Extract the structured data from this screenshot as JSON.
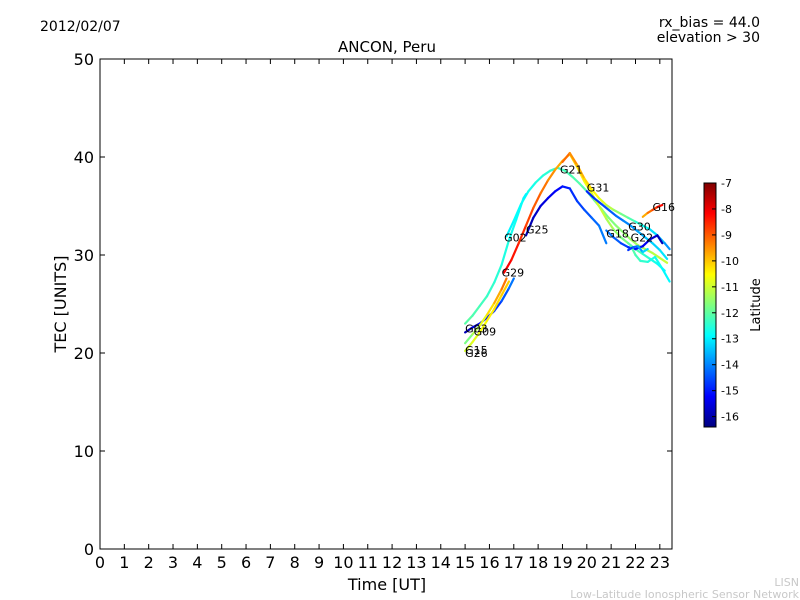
{
  "header": {
    "date": "2012/02/07",
    "rx_bias": "rx_bias = 44.0",
    "elevation": "elevation > 30"
  },
  "footer": {
    "credit_short": "LISN",
    "credit_long": "Low-Latitude Ionospheric Sensor Network"
  },
  "chart_data": {
    "type": "line",
    "title": "ANCON, Peru",
    "xlabel": "Time [UT]",
    "ylabel": "TEC [UNITS]",
    "xlim": [
      0,
      23.5
    ],
    "ylim": [
      0,
      50
    ],
    "xticks": [
      "0",
      "1",
      "2",
      "3",
      "4",
      "5",
      "6",
      "7",
      "8",
      "9",
      "10",
      "11",
      "12",
      "13",
      "14",
      "15",
      "16",
      "17",
      "18",
      "19",
      "20",
      "21",
      "22",
      "23"
    ],
    "yticks": [
      "0",
      "10",
      "20",
      "30",
      "40",
      "50"
    ],
    "grid": false,
    "colorbar": {
      "label": "Latitude",
      "range": [
        -16.4,
        -7
      ],
      "ticks": [
        "-7",
        "-8",
        "-9",
        "-10",
        "-11",
        "-12",
        "-13",
        "-14",
        "-15",
        "-16"
      ],
      "colors": [
        "#00007f",
        "#0000ff",
        "#007fff",
        "#00ffff",
        "#7fff7f",
        "#ffff00",
        "#ff7f00",
        "#ff0000",
        "#7f0000"
      ]
    },
    "series": [
      {
        "name": "G02",
        "lat_start": -13,
        "lat_end": -11,
        "x": [
          16.7,
          17.0,
          17.3,
          17.6,
          17.9,
          18.2,
          18.5,
          18.8,
          19.1,
          19.4,
          19.7,
          20.0,
          20.3,
          20.6,
          20.9,
          21.2,
          21.5,
          21.8,
          22.1,
          22.4,
          22.7,
          23.0,
          23.3
        ],
        "y": [
          31.9,
          33.5,
          35.2,
          36.5,
          37.4,
          38.1,
          38.6,
          38.9,
          38.6,
          38.0,
          37.3,
          36.5,
          35.6,
          34.7,
          33.8,
          33.0,
          32.3,
          31.6,
          31.0,
          30.6,
          30.2,
          29.7,
          29.2
        ]
      },
      {
        "name": "G25",
        "lat_start": -16,
        "lat_end": -14,
        "x": [
          17.5,
          17.8,
          18.1,
          18.4,
          18.7,
          19.0,
          19.3,
          19.6,
          19.9,
          20.2,
          20.5,
          20.8
        ],
        "y": [
          32.0,
          33.8,
          35.0,
          35.8,
          36.5,
          37.0,
          36.8,
          35.5,
          34.6,
          33.8,
          33.0,
          31.2
        ]
      },
      {
        "name": "G29",
        "lat_start": -8,
        "lat_end": -13,
        "x": [
          16.6,
          16.9,
          17.2,
          17.5,
          17.8,
          18.1,
          18.4,
          18.7,
          19.0,
          19.3,
          19.6,
          19.9,
          20.2,
          20.5,
          20.8,
          21.1,
          21.4,
          21.7,
          22.0,
          22.3,
          22.6,
          22.9,
          23.2
        ],
        "y": [
          28.2,
          29.5,
          31.2,
          33.0,
          34.8,
          36.3,
          37.6,
          38.7,
          39.6,
          40.3,
          39.0,
          37.5,
          36.3,
          35.0,
          33.7,
          32.6,
          31.8,
          31.2,
          30.6,
          30.1,
          29.6,
          29.1,
          28.4
        ]
      },
      {
        "name": "G21",
        "lat_start": -9,
        "lat_end": -14,
        "x": [
          19.0,
          19.3,
          19.6,
          19.9,
          20.2,
          20.5,
          20.8,
          21.1,
          21.4,
          21.7,
          22.0,
          22.3,
          22.6,
          22.9,
          23.2,
          23.4
        ],
        "y": [
          39.5,
          40.4,
          39.2,
          37.8,
          36.7,
          35.8,
          35.1,
          34.6,
          34.2,
          33.8,
          33.4,
          33.0,
          32.6,
          32.0,
          31.2,
          30.6
        ]
      },
      {
        "name": "G31",
        "lat_start": -15,
        "lat_end": -13,
        "x": [
          20.0,
          20.3,
          20.6,
          20.9,
          21.2,
          21.5,
          21.8,
          22.1,
          22.4,
          22.7,
          23.0,
          23.3
        ],
        "y": [
          36.5,
          35.8,
          35.2,
          34.6,
          34.0,
          33.5,
          33.0,
          32.4,
          31.8,
          31.2,
          30.5,
          29.6
        ]
      },
      {
        "name": "G18",
        "lat_start": -14,
        "lat_end": -16,
        "x": [
          20.8,
          21.1,
          21.4,
          21.7,
          22.0,
          22.3,
          22.6,
          22.9,
          23.1
        ],
        "y": [
          32.5,
          31.8,
          31.2,
          30.8,
          30.6,
          30.9,
          31.6,
          32.0,
          31.2
        ]
      },
      {
        "name": "G30",
        "lat_start": -12,
        "lat_end": -13,
        "x": [
          21.8,
          22.0,
          22.2,
          22.5,
          22.8,
          23.1,
          23.4
        ],
        "y": [
          31.0,
          30.0,
          29.4,
          29.3,
          29.8,
          28.6,
          27.3
        ]
      },
      {
        "name": "G22",
        "lat_start": -15,
        "lat_end": -13,
        "x": [
          21.7,
          21.9,
          22.1,
          22.3,
          22.5
        ],
        "y": [
          30.5,
          30.8,
          30.9,
          30.3,
          30.6
        ]
      },
      {
        "name": "G16",
        "lat_start": -10,
        "lat_end": -8,
        "x": [
          22.3,
          22.5,
          22.7,
          22.9,
          23.1
        ],
        "y": [
          33.9,
          34.3,
          34.6,
          34.9,
          35.1
        ]
      },
      {
        "name": "G03",
        "lat_start": -12,
        "lat_end": -13,
        "x": [
          15.0,
          15.3,
          15.6,
          15.9,
          16.2,
          16.5,
          16.8,
          17.1,
          17.4,
          17.5
        ],
        "y": [
          23.0,
          23.8,
          24.8,
          25.8,
          27.2,
          29.0,
          31.5,
          33.6,
          35.8,
          36.2
        ]
      },
      {
        "name": "G09",
        "lat_start": -16,
        "lat_end": -14,
        "x": [
          15.0,
          15.3,
          15.6,
          15.9,
          16.2,
          16.5,
          16.8,
          17.0
        ],
        "y": [
          22.1,
          22.6,
          23.0,
          23.6,
          24.3,
          25.3,
          26.6,
          27.6
        ]
      },
      {
        "name": "G15",
        "lat_start": -11,
        "lat_end": -10,
        "x": [
          15.0,
          15.3,
          15.6,
          15.9,
          16.2,
          16.5,
          16.8
        ],
        "y": [
          20.2,
          21.1,
          22.1,
          23.3,
          24.5,
          25.9,
          27.3
        ]
      },
      {
        "name": "G26",
        "lat_start": -12,
        "lat_end": -9,
        "x": [
          15.0,
          15.3,
          15.6,
          15.9,
          16.2,
          16.5,
          16.7
        ],
        "y": [
          21.0,
          21.9,
          22.8,
          23.9,
          25.1,
          26.5,
          27.6
        ]
      }
    ],
    "labels": [
      {
        "text": "G21",
        "x": 18.9,
        "y": 38.3
      },
      {
        "text": "G31",
        "x": 20.0,
        "y": 36.5
      },
      {
        "text": "G16",
        "x": 22.7,
        "y": 34.5
      },
      {
        "text": "G30",
        "x": 21.7,
        "y": 32.5
      },
      {
        "text": "G18",
        "x": 20.8,
        "y": 31.8
      },
      {
        "text": "G22",
        "x": 21.8,
        "y": 31.4
      },
      {
        "text": "G25",
        "x": 17.5,
        "y": 32.2
      },
      {
        "text": "G02",
        "x": 16.6,
        "y": 31.4
      },
      {
        "text": "G29",
        "x": 16.5,
        "y": 27.8
      },
      {
        "text": "G09",
        "x": 15.35,
        "y": 21.8
      },
      {
        "text": "G03",
        "x": 15.0,
        "y": 22.1
      },
      {
        "text": "G15",
        "x": 15.0,
        "y": 19.9
      },
      {
        "text": "G26",
        "x": 15.0,
        "y": 19.6
      }
    ]
  }
}
